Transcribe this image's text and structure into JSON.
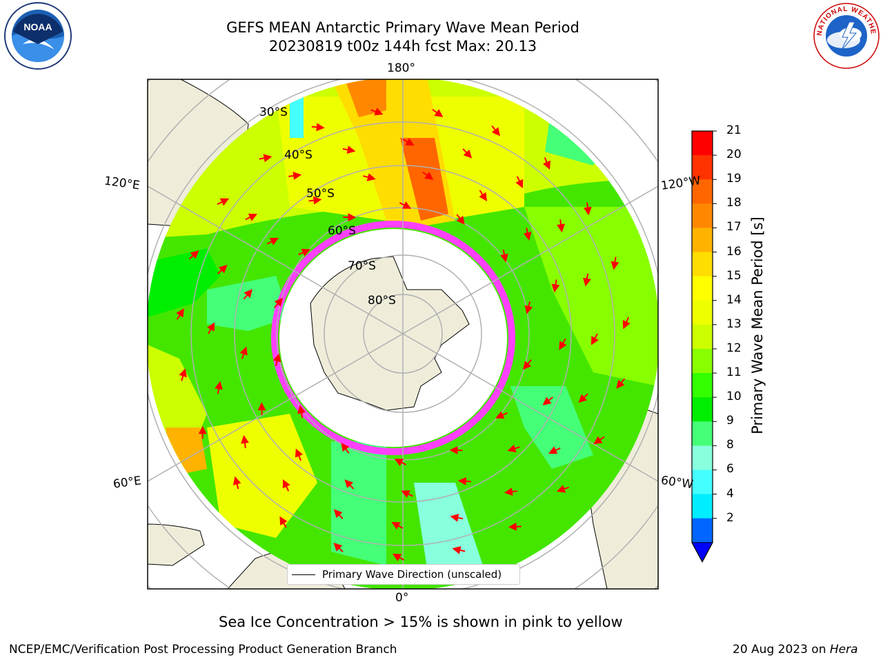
{
  "title": {
    "line1": "GEFS MEAN Antarctic Primary Wave Mean Period",
    "line2": "20230819 t00z 144h fcst   Max: 20.13"
  },
  "map": {
    "longitude_labels": {
      "top": "180°",
      "bottom": "0°",
      "left_upper": "120°E",
      "left_lower": "60°E",
      "right_upper": "120°W",
      "right_lower": "60°W"
    },
    "latitude_labels": [
      "30°S",
      "40°S",
      "50°S",
      "60°S",
      "70°S",
      "80°S"
    ],
    "legend": "Primary Wave Direction (unscaled)",
    "colors": {
      "land": "#efedda",
      "ice_free_open": "#ffffff",
      "sea_ice_edge": "#ff40ff",
      "arrow": "#ff0000",
      "grid": "#b0b0b0"
    }
  },
  "colorbar": {
    "label": "Primary Wave Mean Period [s]",
    "ticks": [
      "21",
      "20",
      "19",
      "18",
      "17",
      "16",
      "15",
      "14",
      "13",
      "12",
      "11",
      "10",
      "9",
      "8",
      "6",
      "4",
      "2"
    ],
    "colors": [
      "#ff0000",
      "#ff3300",
      "#ff6600",
      "#ff8800",
      "#ffb300",
      "#ffdd00",
      "#ffff00",
      "#eeff00",
      "#ccff00",
      "#88ff00",
      "#33ff00",
      "#00ee00",
      "#44ff77",
      "#88ffdd",
      "#44ffff",
      "#00eeff",
      "#0066ff"
    ],
    "extend_color": "#0000ff"
  },
  "caption": "Sea Ice Concentration > 15% is shown in pink to yellow",
  "footer": {
    "left": "NCEP/EMC/Verification Post Processing Product Generation Branch",
    "right_prefix": "20 Aug 2023 on ",
    "right_host": "Hera"
  },
  "logos": {
    "noaa_text": "NOAA",
    "nws_text": "NATIONAL WEATHER SERVICE"
  }
}
